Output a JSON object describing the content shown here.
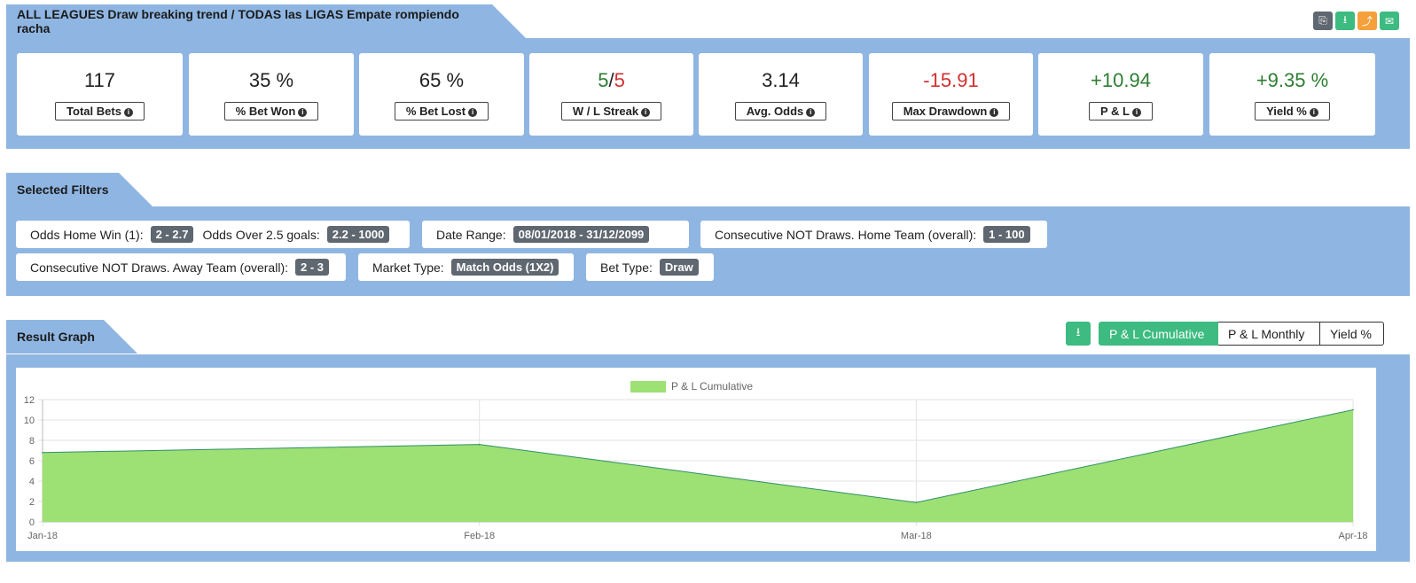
{
  "header": {
    "title": "ALL LEAGUES Draw breaking trend / TODAS las LIGAS Empate rompiendo racha",
    "icons": [
      {
        "name": "copy-icon",
        "glyph": "⎘",
        "color": "#5f6770"
      },
      {
        "name": "download-icon",
        "glyph": "⭳",
        "color": "#3dbb80"
      },
      {
        "name": "share-icon",
        "glyph": "⤴",
        "color": "#f5a03b"
      },
      {
        "name": "email-icon",
        "glyph": "✉",
        "color": "#3dbb80"
      }
    ]
  },
  "stats": [
    {
      "value": "117",
      "label": "Total Bets"
    },
    {
      "value": "35 %",
      "label": "% Bet Won"
    },
    {
      "value": "65 %",
      "label": "% Bet Lost"
    },
    {
      "value_win": "5",
      "value_sep": "/",
      "value_loss": "5",
      "label": "W / L Streak"
    },
    {
      "value": "3.14",
      "label": "Avg. Odds"
    },
    {
      "value": "-15.91",
      "label": "Max Drawdown"
    },
    {
      "value": "+10.94",
      "label": "P & L"
    },
    {
      "value": "+9.35 %",
      "label": "Yield %"
    }
  ],
  "filters": {
    "title": "Selected Filters",
    "items": [
      {
        "label": "Odds Home Win (1):",
        "value": "2 - 2.7",
        "label2": "Odds Over 2.5 goals:",
        "value2": "2.2 - 1000"
      },
      {
        "label": "Date Range:",
        "value": "08/01/2018 - 31/12/2099"
      },
      {
        "label": "Consecutive NOT Draws. Home Team (overall):",
        "value": "1 - 100"
      },
      {
        "label": "Consecutive NOT Draws. Away Team (overall):",
        "value": "2 - 3"
      },
      {
        "label": "Market Type:",
        "value": "Match Odds (1X2)"
      },
      {
        "label": "Bet Type:",
        "value": "Draw"
      }
    ]
  },
  "graph": {
    "title": "Result Graph",
    "buttons": {
      "cumulative": "P & L Cumulative",
      "monthly": "P & L Monthly",
      "yield": "Yield %"
    }
  },
  "chart_data": {
    "type": "area",
    "x": [
      "Jan-18",
      "Feb-18",
      "Mar-18",
      "Apr-18"
    ],
    "series": [
      {
        "name": "P & L Cumulative",
        "values": [
          6.8,
          7.6,
          1.9,
          11.0
        ]
      }
    ],
    "yticks": [
      0,
      2,
      4,
      6,
      8,
      10,
      12
    ],
    "ylim": [
      0,
      12
    ],
    "grid": true,
    "legend": "top",
    "colors": {
      "fill": "#9de073",
      "line": "#2f8f6a"
    }
  }
}
